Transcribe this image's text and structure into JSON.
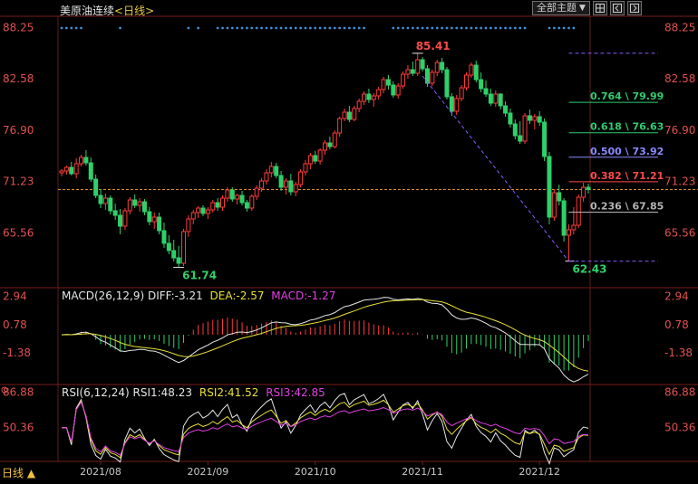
{
  "header": {
    "symbol": "美原油连续",
    "timeframe": "<日线>",
    "selector_label": "全部主题",
    "selector_arrow": "▼",
    "btn_grid_icon": "grid-icon",
    "btn_prev_icon": "prev-icon",
    "btn_next_icon": "next-icon"
  },
  "price_chart": {
    "y_ticks": [
      "88.25",
      "82.58",
      "76.90",
      "71.23",
      "65.56"
    ],
    "y_tick_values": [
      88.25,
      82.58,
      76.9,
      71.23,
      65.56
    ],
    "y_range": [
      59.5,
      89.5
    ],
    "last_price": 70.35,
    "high_label": "85.41",
    "low_label_left": "61.74",
    "low_label_right": "62.43",
    "fib_labels": [
      "0.764 \\ 79.99",
      "0.618 \\ 76.63",
      "0.500 \\ 73.92",
      "0.382 \\ 71.21",
      "0.236 \\ 67.85"
    ],
    "fib_values": [
      79.99,
      76.63,
      73.92,
      71.21,
      67.85
    ],
    "fib_colors": [
      "#2ecc71",
      "#2ecc71",
      "#8a8aff",
      "#ff4b4b",
      "#b4b4b4"
    ],
    "fib_top": 85.41,
    "fib_bottom": 62.43,
    "up_color": "#ff3b3b",
    "down_color": "#2fd06a"
  },
  "macd": {
    "label": "MACD(26,12,9)",
    "diff_label": "DIFF:-3.21",
    "dea_label": "DEA:-2.57",
    "macd_label": "MACD:-1.27",
    "y_ticks": [
      "2.94",
      "0.78",
      "-1.38"
    ],
    "y_tick_values": [
      2.94,
      0.78,
      -1.38
    ],
    "y_range": [
      -3.8,
      3.6
    ]
  },
  "rsi": {
    "label": "RSI(6,12,24)",
    "rsi1_label": "RSI1:48.23",
    "rsi2_label": "RSI2:41.52",
    "rsi3_label": "RSI3:42.85",
    "y_ticks": [
      "86.88",
      "50.36"
    ],
    "y_tick_values": [
      86.88,
      50.36
    ],
    "y_range": [
      15,
      95
    ]
  },
  "x_axis": {
    "ticks": [
      "2021/08",
      "2021/09",
      "2021/10",
      "2021/11",
      "2021/12"
    ]
  },
  "footer": {
    "period_label": "日线 ▲"
  },
  "chart_data": {
    "type": "candlestick",
    "title": "美原油连续<日线>",
    "x_ticks": [
      "2021/08",
      "2021/09",
      "2021/10",
      "2021/11",
      "2021/12"
    ],
    "candles": [
      [
        72.2,
        72.6,
        71.8,
        72.4
      ],
      [
        72.4,
        73.0,
        72.0,
        72.8
      ],
      [
        72.8,
        73.4,
        71.9,
        72.1
      ],
      [
        72.1,
        73.8,
        71.6,
        73.2
      ],
      [
        73.2,
        74.2,
        72.9,
        73.9
      ],
      [
        73.9,
        74.7,
        73.0,
        73.3
      ],
      [
        73.3,
        73.9,
        71.2,
        71.5
      ],
      [
        71.5,
        72.0,
        69.4,
        69.7
      ],
      [
        69.7,
        70.4,
        68.3,
        68.8
      ],
      [
        68.8,
        69.9,
        68.1,
        69.4
      ],
      [
        69.4,
        69.7,
        67.6,
        68.0
      ],
      [
        68.0,
        68.8,
        67.0,
        67.5
      ],
      [
        67.5,
        68.2,
        65.4,
        66.3
      ],
      [
        66.3,
        68.3,
        65.9,
        68.0
      ],
      [
        68.0,
        69.5,
        67.6,
        69.2
      ],
      [
        69.2,
        69.8,
        68.3,
        68.6
      ],
      [
        68.6,
        69.4,
        67.9,
        69.0
      ],
      [
        69.0,
        69.3,
        67.5,
        67.9
      ],
      [
        67.9,
        68.4,
        66.4,
        66.8
      ],
      [
        66.8,
        67.8,
        66.0,
        67.3
      ],
      [
        67.3,
        67.8,
        65.4,
        65.8
      ],
      [
        65.8,
        66.7,
        63.9,
        64.4
      ],
      [
        64.4,
        65.3,
        63.2,
        63.6
      ],
      [
        63.6,
        64.8,
        62.4,
        62.8
      ],
      [
        62.8,
        64.1,
        61.74,
        62.2
      ],
      [
        62.2,
        66.0,
        61.9,
        65.7
      ],
      [
        65.7,
        67.5,
        65.1,
        67.1
      ],
      [
        67.1,
        68.1,
        66.5,
        67.8
      ],
      [
        67.8,
        68.5,
        67.2,
        68.3
      ],
      [
        68.3,
        68.6,
        67.4,
        67.7
      ],
      [
        67.7,
        68.4,
        67.1,
        68.1
      ],
      [
        68.1,
        69.2,
        67.8,
        68.9
      ],
      [
        68.9,
        69.4,
        68.0,
        68.4
      ],
      [
        68.4,
        69.7,
        68.0,
        69.4
      ],
      [
        69.4,
        70.6,
        69.0,
        70.3
      ],
      [
        70.3,
        70.6,
        69.0,
        69.3
      ],
      [
        69.3,
        69.9,
        68.7,
        69.7
      ],
      [
        69.7,
        70.2,
        68.6,
        68.9
      ],
      [
        68.9,
        69.2,
        67.9,
        68.3
      ],
      [
        68.3,
        69.8,
        68.0,
        69.6
      ],
      [
        69.6,
        70.8,
        69.2,
        70.5
      ],
      [
        70.5,
        71.6,
        70.1,
        71.3
      ],
      [
        71.3,
        72.6,
        70.9,
        72.2
      ],
      [
        72.2,
        73.4,
        71.7,
        72.9
      ],
      [
        72.9,
        73.3,
        71.6,
        71.9
      ],
      [
        71.9,
        72.4,
        70.2,
        70.6
      ],
      [
        70.6,
        71.6,
        69.8,
        71.3
      ],
      [
        71.3,
        72.1,
        69.7,
        70.1
      ],
      [
        70.1,
        71.2,
        69.6,
        70.9
      ],
      [
        70.9,
        72.6,
        70.6,
        72.3
      ],
      [
        72.3,
        73.6,
        71.9,
        73.2
      ],
      [
        73.2,
        74.4,
        72.6,
        74.1
      ],
      [
        74.1,
        74.6,
        73.2,
        73.5
      ],
      [
        73.5,
        74.9,
        73.1,
        74.7
      ],
      [
        74.7,
        75.8,
        74.2,
        75.5
      ],
      [
        75.5,
        76.2,
        74.8,
        75.1
      ],
      [
        75.1,
        76.9,
        74.9,
        76.6
      ],
      [
        76.6,
        78.4,
        76.2,
        78.2
      ],
      [
        78.2,
        79.3,
        77.9,
        78.9
      ],
      [
        78.9,
        79.6,
        77.8,
        78.1
      ],
      [
        78.1,
        79.6,
        77.9,
        79.3
      ],
      [
        79.3,
        80.4,
        78.9,
        80.1
      ],
      [
        80.1,
        81.2,
        79.7,
        80.9
      ],
      [
        80.9,
        81.5,
        79.9,
        80.3
      ],
      [
        80.3,
        81.0,
        79.5,
        80.7
      ],
      [
        80.7,
        81.7,
        80.3,
        81.4
      ],
      [
        81.4,
        82.8,
        81.0,
        82.5
      ],
      [
        82.5,
        83.0,
        81.4,
        81.9
      ],
      [
        81.9,
        82.3,
        80.5,
        80.8
      ],
      [
        80.8,
        82.1,
        80.4,
        81.8
      ],
      [
        81.8,
        83.4,
        81.5,
        83.1
      ],
      [
        83.1,
        84.1,
        82.6,
        83.6
      ],
      [
        83.6,
        84.5,
        82.9,
        83.2
      ],
      [
        83.2,
        85.41,
        82.9,
        84.7
      ],
      [
        84.7,
        85.0,
        83.4,
        83.7
      ],
      [
        83.7,
        84.1,
        81.7,
        82.1
      ],
      [
        82.1,
        83.6,
        81.8,
        83.3
      ],
      [
        83.3,
        84.7,
        82.9,
        84.4
      ],
      [
        84.4,
        84.9,
        83.2,
        83.6
      ],
      [
        83.6,
        83.9,
        80.3,
        80.6
      ],
      [
        80.6,
        81.0,
        78.5,
        79.0
      ],
      [
        79.0,
        80.8,
        78.6,
        80.4
      ],
      [
        80.4,
        81.9,
        80.1,
        81.6
      ],
      [
        81.6,
        83.3,
        81.3,
        83.0
      ],
      [
        83.0,
        84.4,
        82.7,
        84.1
      ],
      [
        84.1,
        84.6,
        82.2,
        82.5
      ],
      [
        82.5,
        83.3,
        81.1,
        81.5
      ],
      [
        81.5,
        82.4,
        80.6,
        80.9
      ],
      [
        80.9,
        81.5,
        79.6,
        79.9
      ],
      [
        79.9,
        81.3,
        79.5,
        80.9
      ],
      [
        80.9,
        81.0,
        79.2,
        79.6
      ],
      [
        79.6,
        80.1,
        78.4,
        78.8
      ],
      [
        78.8,
        79.3,
        77.2,
        77.6
      ],
      [
        77.6,
        78.1,
        75.9,
        76.3
      ],
      [
        76.3,
        77.9,
        75.4,
        75.7
      ],
      [
        75.7,
        78.8,
        75.4,
        78.5
      ],
      [
        78.5,
        79.2,
        77.6,
        78.0
      ],
      [
        78.0,
        78.7,
        77.0,
        78.4
      ],
      [
        78.4,
        79.0,
        77.4,
        77.8
      ],
      [
        77.8,
        78.2,
        73.5,
        74.0
      ],
      [
        74.0,
        74.5,
        66.5,
        67.3
      ],
      [
        67.3,
        70.4,
        66.9,
        70.0
      ],
      [
        70.0,
        70.9,
        68.6,
        69.1
      ],
      [
        69.1,
        69.4,
        64.6,
        65.3
      ],
      [
        65.3,
        66.5,
        62.43,
        65.9
      ],
      [
        65.9,
        68.4,
        65.4,
        66.4
      ],
      [
        66.4,
        69.8,
        66.1,
        69.5
      ],
      [
        69.5,
        71.1,
        69.0,
        70.6
      ],
      [
        70.6,
        71.0,
        69.9,
        70.35
      ]
    ],
    "high": 85.41,
    "low": 61.74,
    "recent_low": 62.43,
    "fibonacci": [
      {
        "ratio": 0.764,
        "value": 79.99
      },
      {
        "ratio": 0.618,
        "value": 76.63
      },
      {
        "ratio": 0.5,
        "value": 73.92
      },
      {
        "ratio": 0.382,
        "value": 71.21
      },
      {
        "ratio": 0.236,
        "value": 67.85
      }
    ],
    "macd": {
      "diff": -3.21,
      "dea": -2.57,
      "macd": -1.27
    },
    "rsi": {
      "rsi1": 48.23,
      "rsi2": 41.52,
      "rsi3": 42.85
    }
  }
}
